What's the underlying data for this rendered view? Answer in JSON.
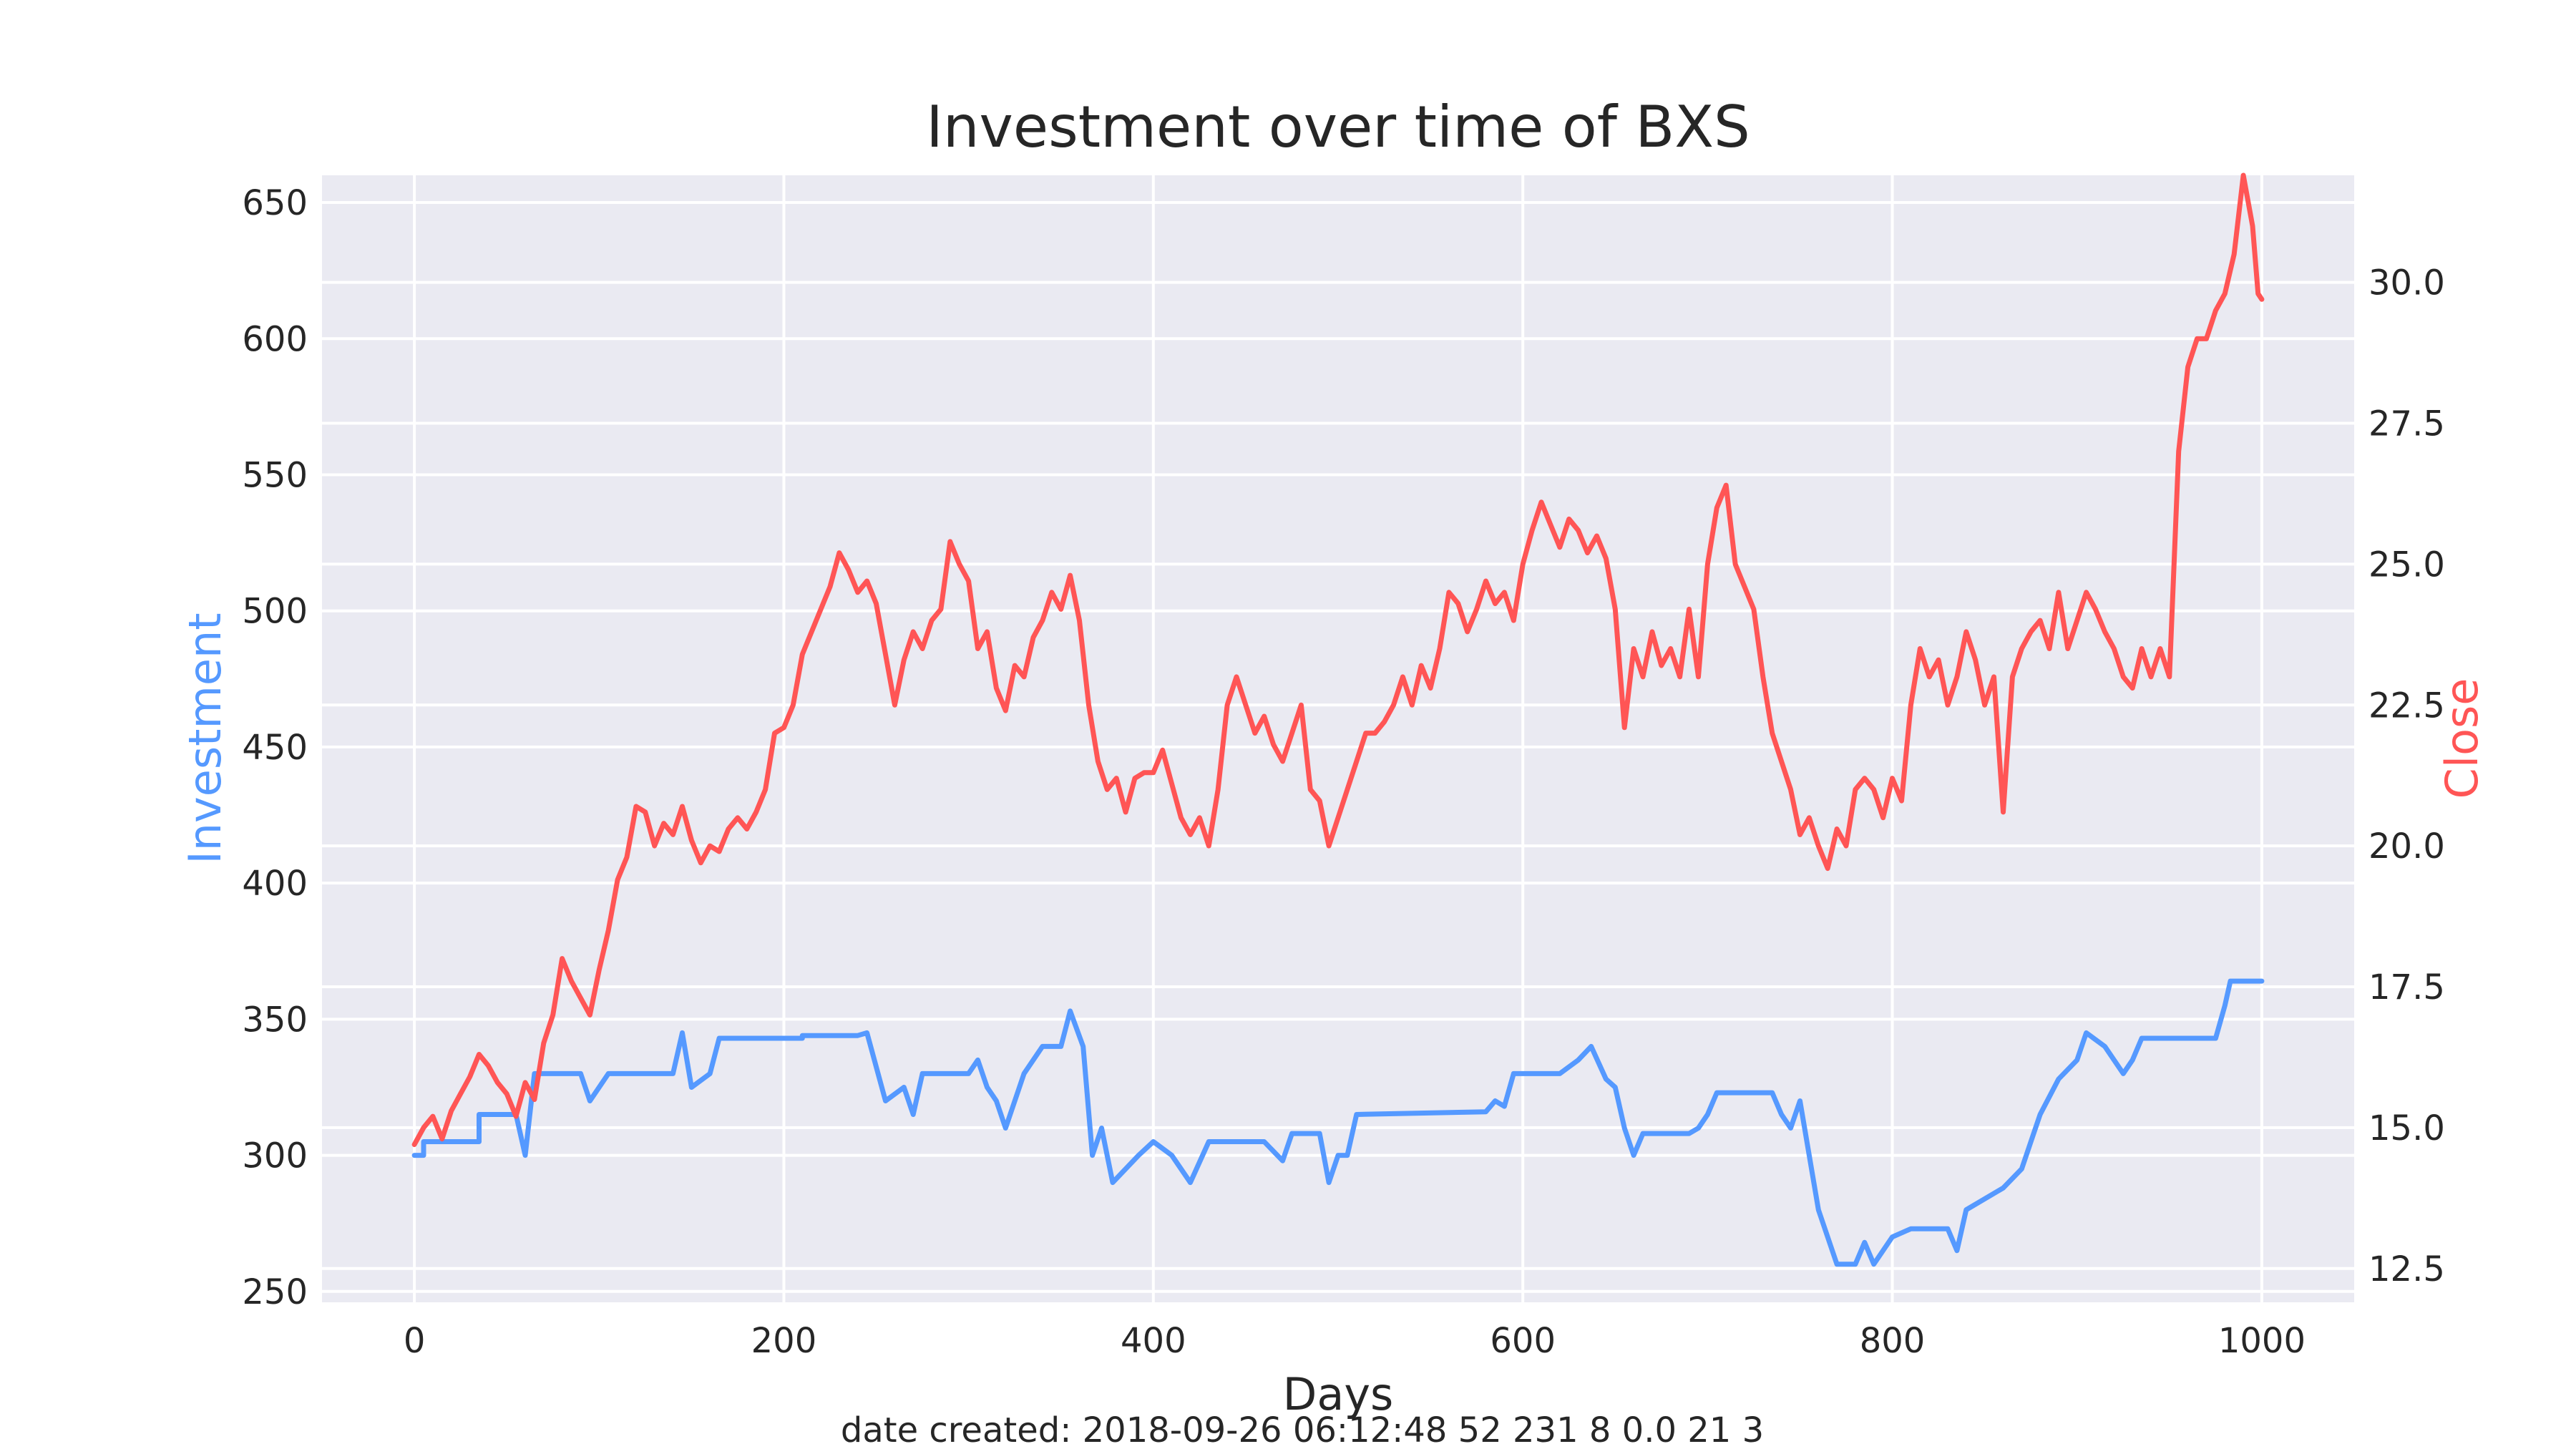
{
  "chart_data": {
    "type": "line",
    "title": "Investment over time of BXS",
    "xlabel": "Days",
    "ylabel_left": "Investment",
    "ylabel_right": "Close",
    "footer": "date created: 2018-09-26 06:12:48 52 231 8 0.0 21 3",
    "xlim": [
      -50,
      1050
    ],
    "xticks": [
      0,
      200,
      400,
      600,
      800,
      1000
    ],
    "ylim_left": [
      246,
      660
    ],
    "yticks_left": [
      250,
      300,
      350,
      400,
      450,
      500,
      550,
      600,
      650
    ],
    "ylim_right": [
      11.9,
      31.9
    ],
    "yticks_right": [
      12.5,
      15.0,
      17.5,
      20.0,
      22.5,
      25.0,
      27.5,
      30.0
    ],
    "grid": true,
    "colors": {
      "background": "#EAEAF2",
      "grid": "#FFFFFF",
      "investment": "#5599FF",
      "close": "#FF5555",
      "text": "#262626"
    },
    "series": [
      {
        "name": "Investment",
        "axis": "left",
        "points": [
          [
            0,
            300
          ],
          [
            5,
            300
          ],
          [
            5,
            305
          ],
          [
            35,
            305
          ],
          [
            35,
            315
          ],
          [
            55,
            315
          ],
          [
            60,
            300
          ],
          [
            65,
            330
          ],
          [
            90,
            330
          ],
          [
            95,
            320
          ],
          [
            100,
            325
          ],
          [
            105,
            330
          ],
          [
            140,
            330
          ],
          [
            145,
            345
          ],
          [
            150,
            325
          ],
          [
            160,
            330
          ],
          [
            165,
            343
          ],
          [
            210,
            343
          ],
          [
            210,
            344
          ],
          [
            240,
            344
          ],
          [
            245,
            345
          ],
          [
            255,
            320
          ],
          [
            265,
            325
          ],
          [
            270,
            315
          ],
          [
            275,
            330
          ],
          [
            300,
            330
          ],
          [
            305,
            335
          ],
          [
            310,
            325
          ],
          [
            315,
            320
          ],
          [
            320,
            310
          ],
          [
            330,
            330
          ],
          [
            340,
            340
          ],
          [
            350,
            340
          ],
          [
            355,
            353
          ],
          [
            362,
            340
          ],
          [
            367,
            300
          ],
          [
            372,
            310
          ],
          [
            378,
            290
          ],
          [
            385,
            295
          ],
          [
            392,
            300
          ],
          [
            400,
            305
          ],
          [
            410,
            300
          ],
          [
            420,
            290
          ],
          [
            430,
            305
          ],
          [
            460,
            305
          ],
          [
            470,
            298
          ],
          [
            475,
            308
          ],
          [
            490,
            308
          ],
          [
            495,
            290
          ],
          [
            500,
            300
          ],
          [
            505,
            300
          ],
          [
            510,
            315
          ],
          [
            580,
            316
          ],
          [
            585,
            320
          ],
          [
            590,
            318
          ],
          [
            595,
            330
          ],
          [
            620,
            330
          ],
          [
            630,
            335
          ],
          [
            637,
            340
          ],
          [
            645,
            328
          ],
          [
            650,
            325
          ],
          [
            655,
            310
          ],
          [
            660,
            300
          ],
          [
            665,
            308
          ],
          [
            690,
            308
          ],
          [
            695,
            310
          ],
          [
            700,
            315
          ],
          [
            705,
            323
          ],
          [
            735,
            323
          ],
          [
            740,
            315
          ],
          [
            745,
            310
          ],
          [
            750,
            320
          ],
          [
            760,
            280
          ],
          [
            765,
            270
          ],
          [
            770,
            260
          ],
          [
            780,
            260
          ],
          [
            785,
            268
          ],
          [
            790,
            260
          ],
          [
            795,
            265
          ],
          [
            800,
            270
          ],
          [
            810,
            273
          ],
          [
            830,
            273
          ],
          [
            835,
            265
          ],
          [
            840,
            280
          ],
          [
            860,
            288
          ],
          [
            870,
            295
          ],
          [
            875,
            305
          ],
          [
            880,
            315
          ],
          [
            890,
            328
          ],
          [
            900,
            335
          ],
          [
            905,
            345
          ],
          [
            915,
            340
          ],
          [
            920,
            335
          ],
          [
            925,
            330
          ],
          [
            930,
            335
          ],
          [
            935,
            343
          ],
          [
            975,
            343
          ],
          [
            980,
            355
          ],
          [
            983,
            364
          ],
          [
            1000,
            364
          ]
        ]
      },
      {
        "name": "Close",
        "axis": "right",
        "points": [
          [
            0,
            14.7
          ],
          [
            5,
            15.0
          ],
          [
            10,
            15.2
          ],
          [
            15,
            14.8
          ],
          [
            20,
            15.3
          ],
          [
            25,
            15.6
          ],
          [
            30,
            15.9
          ],
          [
            35,
            16.3
          ],
          [
            40,
            16.1
          ],
          [
            45,
            15.8
          ],
          [
            50,
            15.6
          ],
          [
            55,
            15.2
          ],
          [
            60,
            15.8
          ],
          [
            65,
            15.5
          ],
          [
            70,
            16.5
          ],
          [
            75,
            17.0
          ],
          [
            80,
            18.0
          ],
          [
            85,
            17.6
          ],
          [
            90,
            17.3
          ],
          [
            95,
            17.0
          ],
          [
            100,
            17.8
          ],
          [
            105,
            18.5
          ],
          [
            110,
            19.4
          ],
          [
            115,
            19.8
          ],
          [
            120,
            20.7
          ],
          [
            125,
            20.6
          ],
          [
            130,
            20.0
          ],
          [
            135,
            20.4
          ],
          [
            140,
            20.2
          ],
          [
            145,
            20.7
          ],
          [
            150,
            20.1
          ],
          [
            155,
            19.7
          ],
          [
            160,
            20.0
          ],
          [
            165,
            19.9
          ],
          [
            170,
            20.3
          ],
          [
            175,
            20.5
          ],
          [
            180,
            20.3
          ],
          [
            185,
            20.6
          ],
          [
            190,
            21.0
          ],
          [
            195,
            22.0
          ],
          [
            200,
            22.1
          ],
          [
            205,
            22.5
          ],
          [
            210,
            23.4
          ],
          [
            215,
            23.8
          ],
          [
            220,
            24.2
          ],
          [
            225,
            24.6
          ],
          [
            230,
            25.2
          ],
          [
            235,
            24.9
          ],
          [
            240,
            24.5
          ],
          [
            245,
            24.7
          ],
          [
            250,
            24.3
          ],
          [
            255,
            23.4
          ],
          [
            260,
            22.5
          ],
          [
            265,
            23.3
          ],
          [
            270,
            23.8
          ],
          [
            275,
            23.5
          ],
          [
            280,
            24.0
          ],
          [
            285,
            24.2
          ],
          [
            290,
            25.4
          ],
          [
            295,
            25.0
          ],
          [
            300,
            24.7
          ],
          [
            305,
            23.5
          ],
          [
            310,
            23.8
          ],
          [
            315,
            22.8
          ],
          [
            320,
            22.4
          ],
          [
            325,
            23.2
          ],
          [
            330,
            23.0
          ],
          [
            335,
            23.7
          ],
          [
            340,
            24.0
          ],
          [
            345,
            24.5
          ],
          [
            350,
            24.2
          ],
          [
            355,
            24.8
          ],
          [
            360,
            24.0
          ],
          [
            365,
            22.5
          ],
          [
            370,
            21.5
          ],
          [
            375,
            21.0
          ],
          [
            380,
            21.2
          ],
          [
            385,
            20.6
          ],
          [
            390,
            21.2
          ],
          [
            395,
            21.3
          ],
          [
            400,
            21.3
          ],
          [
            405,
            21.7
          ],
          [
            410,
            21.1
          ],
          [
            415,
            20.5
          ],
          [
            420,
            20.2
          ],
          [
            425,
            20.5
          ],
          [
            430,
            20.0
          ],
          [
            435,
            21.0
          ],
          [
            440,
            22.5
          ],
          [
            445,
            23.0
          ],
          [
            450,
            22.5
          ],
          [
            455,
            22.0
          ],
          [
            460,
            22.3
          ],
          [
            465,
            21.8
          ],
          [
            470,
            21.5
          ],
          [
            475,
            22.0
          ],
          [
            480,
            22.5
          ],
          [
            485,
            21.0
          ],
          [
            490,
            20.8
          ],
          [
            495,
            20.0
          ],
          [
            500,
            20.5
          ],
          [
            505,
            21.0
          ],
          [
            510,
            21.5
          ],
          [
            515,
            22.0
          ],
          [
            520,
            22.0
          ],
          [
            525,
            22.2
          ],
          [
            530,
            22.5
          ],
          [
            535,
            23.0
          ],
          [
            540,
            22.5
          ],
          [
            545,
            23.2
          ],
          [
            550,
            22.8
          ],
          [
            555,
            23.5
          ],
          [
            560,
            24.5
          ],
          [
            565,
            24.3
          ],
          [
            570,
            23.8
          ],
          [
            575,
            24.2
          ],
          [
            580,
            24.7
          ],
          [
            585,
            24.3
          ],
          [
            590,
            24.5
          ],
          [
            595,
            24.0
          ],
          [
            600,
            25.0
          ],
          [
            605,
            25.6
          ],
          [
            610,
            26.1
          ],
          [
            615,
            25.7
          ],
          [
            620,
            25.3
          ],
          [
            625,
            25.8
          ],
          [
            630,
            25.6
          ],
          [
            635,
            25.2
          ],
          [
            640,
            25.5
          ],
          [
            645,
            25.1
          ],
          [
            650,
            24.2
          ],
          [
            655,
            22.1
          ],
          [
            660,
            23.5
          ],
          [
            665,
            23.0
          ],
          [
            670,
            23.8
          ],
          [
            675,
            23.2
          ],
          [
            680,
            23.5
          ],
          [
            685,
            23.0
          ],
          [
            690,
            24.2
          ],
          [
            695,
            23.0
          ],
          [
            700,
            25.0
          ],
          [
            705,
            26.0
          ],
          [
            710,
            26.4
          ],
          [
            715,
            25.0
          ],
          [
            720,
            24.6
          ],
          [
            725,
            24.2
          ],
          [
            730,
            23.0
          ],
          [
            735,
            22.0
          ],
          [
            740,
            21.5
          ],
          [
            745,
            21.0
          ],
          [
            750,
            20.2
          ],
          [
            755,
            20.5
          ],
          [
            760,
            20.0
          ],
          [
            765,
            19.6
          ],
          [
            770,
            20.3
          ],
          [
            775,
            20.0
          ],
          [
            780,
            21.0
          ],
          [
            785,
            21.2
          ],
          [
            790,
            21.0
          ],
          [
            795,
            20.5
          ],
          [
            800,
            21.2
          ],
          [
            805,
            20.8
          ],
          [
            810,
            22.5
          ],
          [
            815,
            23.5
          ],
          [
            820,
            23.0
          ],
          [
            825,
            23.3
          ],
          [
            830,
            22.5
          ],
          [
            835,
            23.0
          ],
          [
            840,
            23.8
          ],
          [
            845,
            23.3
          ],
          [
            850,
            22.5
          ],
          [
            855,
            23.0
          ],
          [
            860,
            20.6
          ],
          [
            865,
            23.0
          ],
          [
            870,
            23.5
          ],
          [
            875,
            23.8
          ],
          [
            880,
            24.0
          ],
          [
            885,
            23.5
          ],
          [
            890,
            24.5
          ],
          [
            895,
            23.5
          ],
          [
            900,
            24.0
          ],
          [
            905,
            24.5
          ],
          [
            910,
            24.2
          ],
          [
            915,
            23.8
          ],
          [
            920,
            23.5
          ],
          [
            925,
            23.0
          ],
          [
            930,
            22.8
          ],
          [
            935,
            23.5
          ],
          [
            940,
            23.0
          ],
          [
            945,
            23.5
          ],
          [
            950,
            23.0
          ],
          [
            955,
            27.0
          ],
          [
            960,
            28.5
          ],
          [
            965,
            29.0
          ],
          [
            970,
            29.0
          ],
          [
            975,
            29.5
          ],
          [
            980,
            29.8
          ],
          [
            985,
            30.5
          ],
          [
            990,
            31.9
          ],
          [
            995,
            31.0
          ],
          [
            998,
            29.8
          ],
          [
            1000,
            29.7
          ]
        ]
      }
    ]
  }
}
